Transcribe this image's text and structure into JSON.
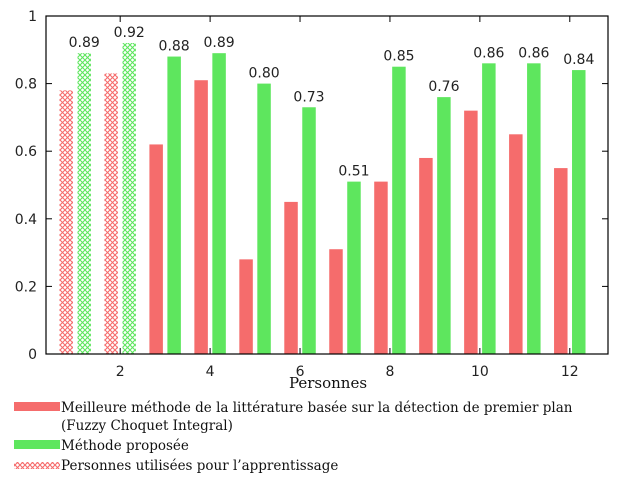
{
  "chart_data": {
    "type": "bar",
    "xlabel": "Personnes",
    "ylabel": "",
    "ylim": [
      0,
      1
    ],
    "yticks": [
      0,
      0.2,
      0.4,
      0.6,
      0.8,
      1
    ],
    "yticks_text": [
      "0",
      "0.2",
      "0.4",
      "0.6",
      "0.8",
      "1"
    ],
    "xticks": [
      2,
      4,
      6,
      8,
      10,
      12
    ],
    "xticks_text": [
      "2",
      "4",
      "6",
      "8",
      "10",
      "12"
    ],
    "categories": [
      1,
      2,
      3,
      4,
      5,
      6,
      7,
      8,
      9,
      10,
      11,
      12
    ],
    "training_persons": [
      1,
      2
    ],
    "grid": false,
    "series": [
      {
        "name": "Meilleure méthode de la littérature basée sur la détection de premier plan (Fuzzy Choquet Integral)",
        "color": "#f56c6c",
        "values": [
          0.78,
          0.83,
          0.62,
          0.81,
          0.28,
          0.45,
          0.31,
          0.51,
          0.58,
          0.72,
          0.65,
          0.55
        ]
      },
      {
        "name": "Méthode proposée",
        "color": "#5ee65e",
        "values": [
          0.89,
          0.92,
          0.88,
          0.89,
          0.8,
          0.73,
          0.51,
          0.85,
          0.76,
          0.86,
          0.86,
          0.84
        ],
        "labels": [
          "0.89",
          "0.92",
          "0.88",
          "0.89",
          "0.80",
          "0.73",
          "0.51",
          "0.85",
          "0.76",
          "0.86",
          "0.86",
          "0.84"
        ]
      }
    ],
    "legend": {
      "placement": "bottom",
      "entries": [
        {
          "line1": "Meilleure méthode de la littérature basée sur la détection de premier plan",
          "line2": "(Fuzzy Choquet Integral)",
          "color": "#f56c6c",
          "style": "solid"
        },
        {
          "line1": "Méthode proposée",
          "color": "#5ee65e",
          "style": "solid"
        },
        {
          "line1": "Personnes utilisées pour l’apprentissage",
          "color": "#f56c6c",
          "style": "hatched"
        }
      ]
    }
  }
}
